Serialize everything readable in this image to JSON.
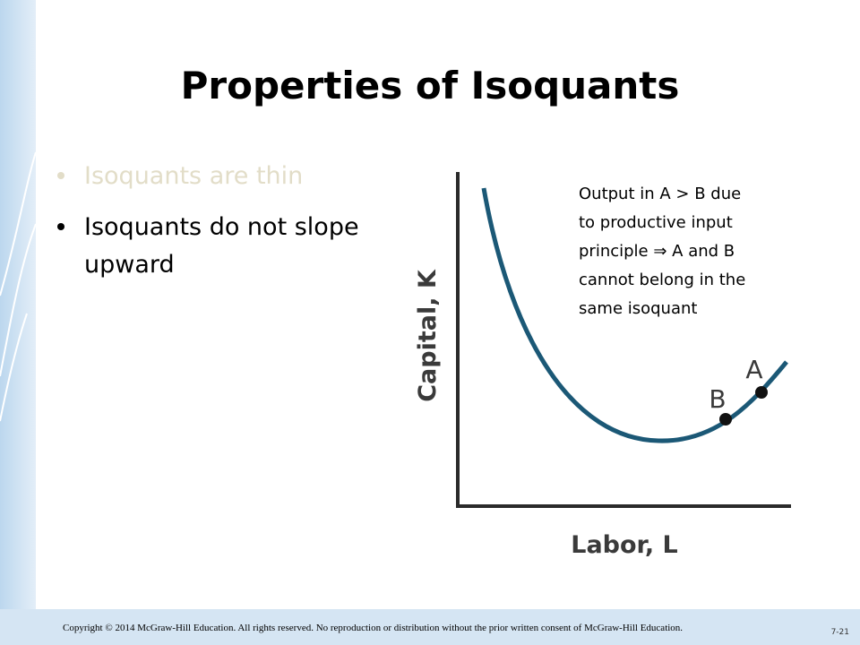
{
  "title": "Properties of Isoquants",
  "bullets": [
    "Isoquants are thin",
    [
      "Isoquants do not slope",
      "upward"
    ]
  ],
  "figure": {
    "y_axis_label": "Capital, K",
    "x_axis_label": "Labor, L",
    "points": [
      {
        "label": "A"
      },
      {
        "label": "B"
      }
    ],
    "annotation": [
      "Output in A > B due",
      "to productive input",
      "principle ⇒ A and B",
      "cannot belong in the",
      "same isoquant"
    ]
  },
  "footer": {
    "copyright": "Copyright © 2014 McGraw-Hill Education. All rights reserved. No reproduction or distribution without the prior written consent of McGraw-Hill Education.",
    "slide_number": "7-21"
  }
}
